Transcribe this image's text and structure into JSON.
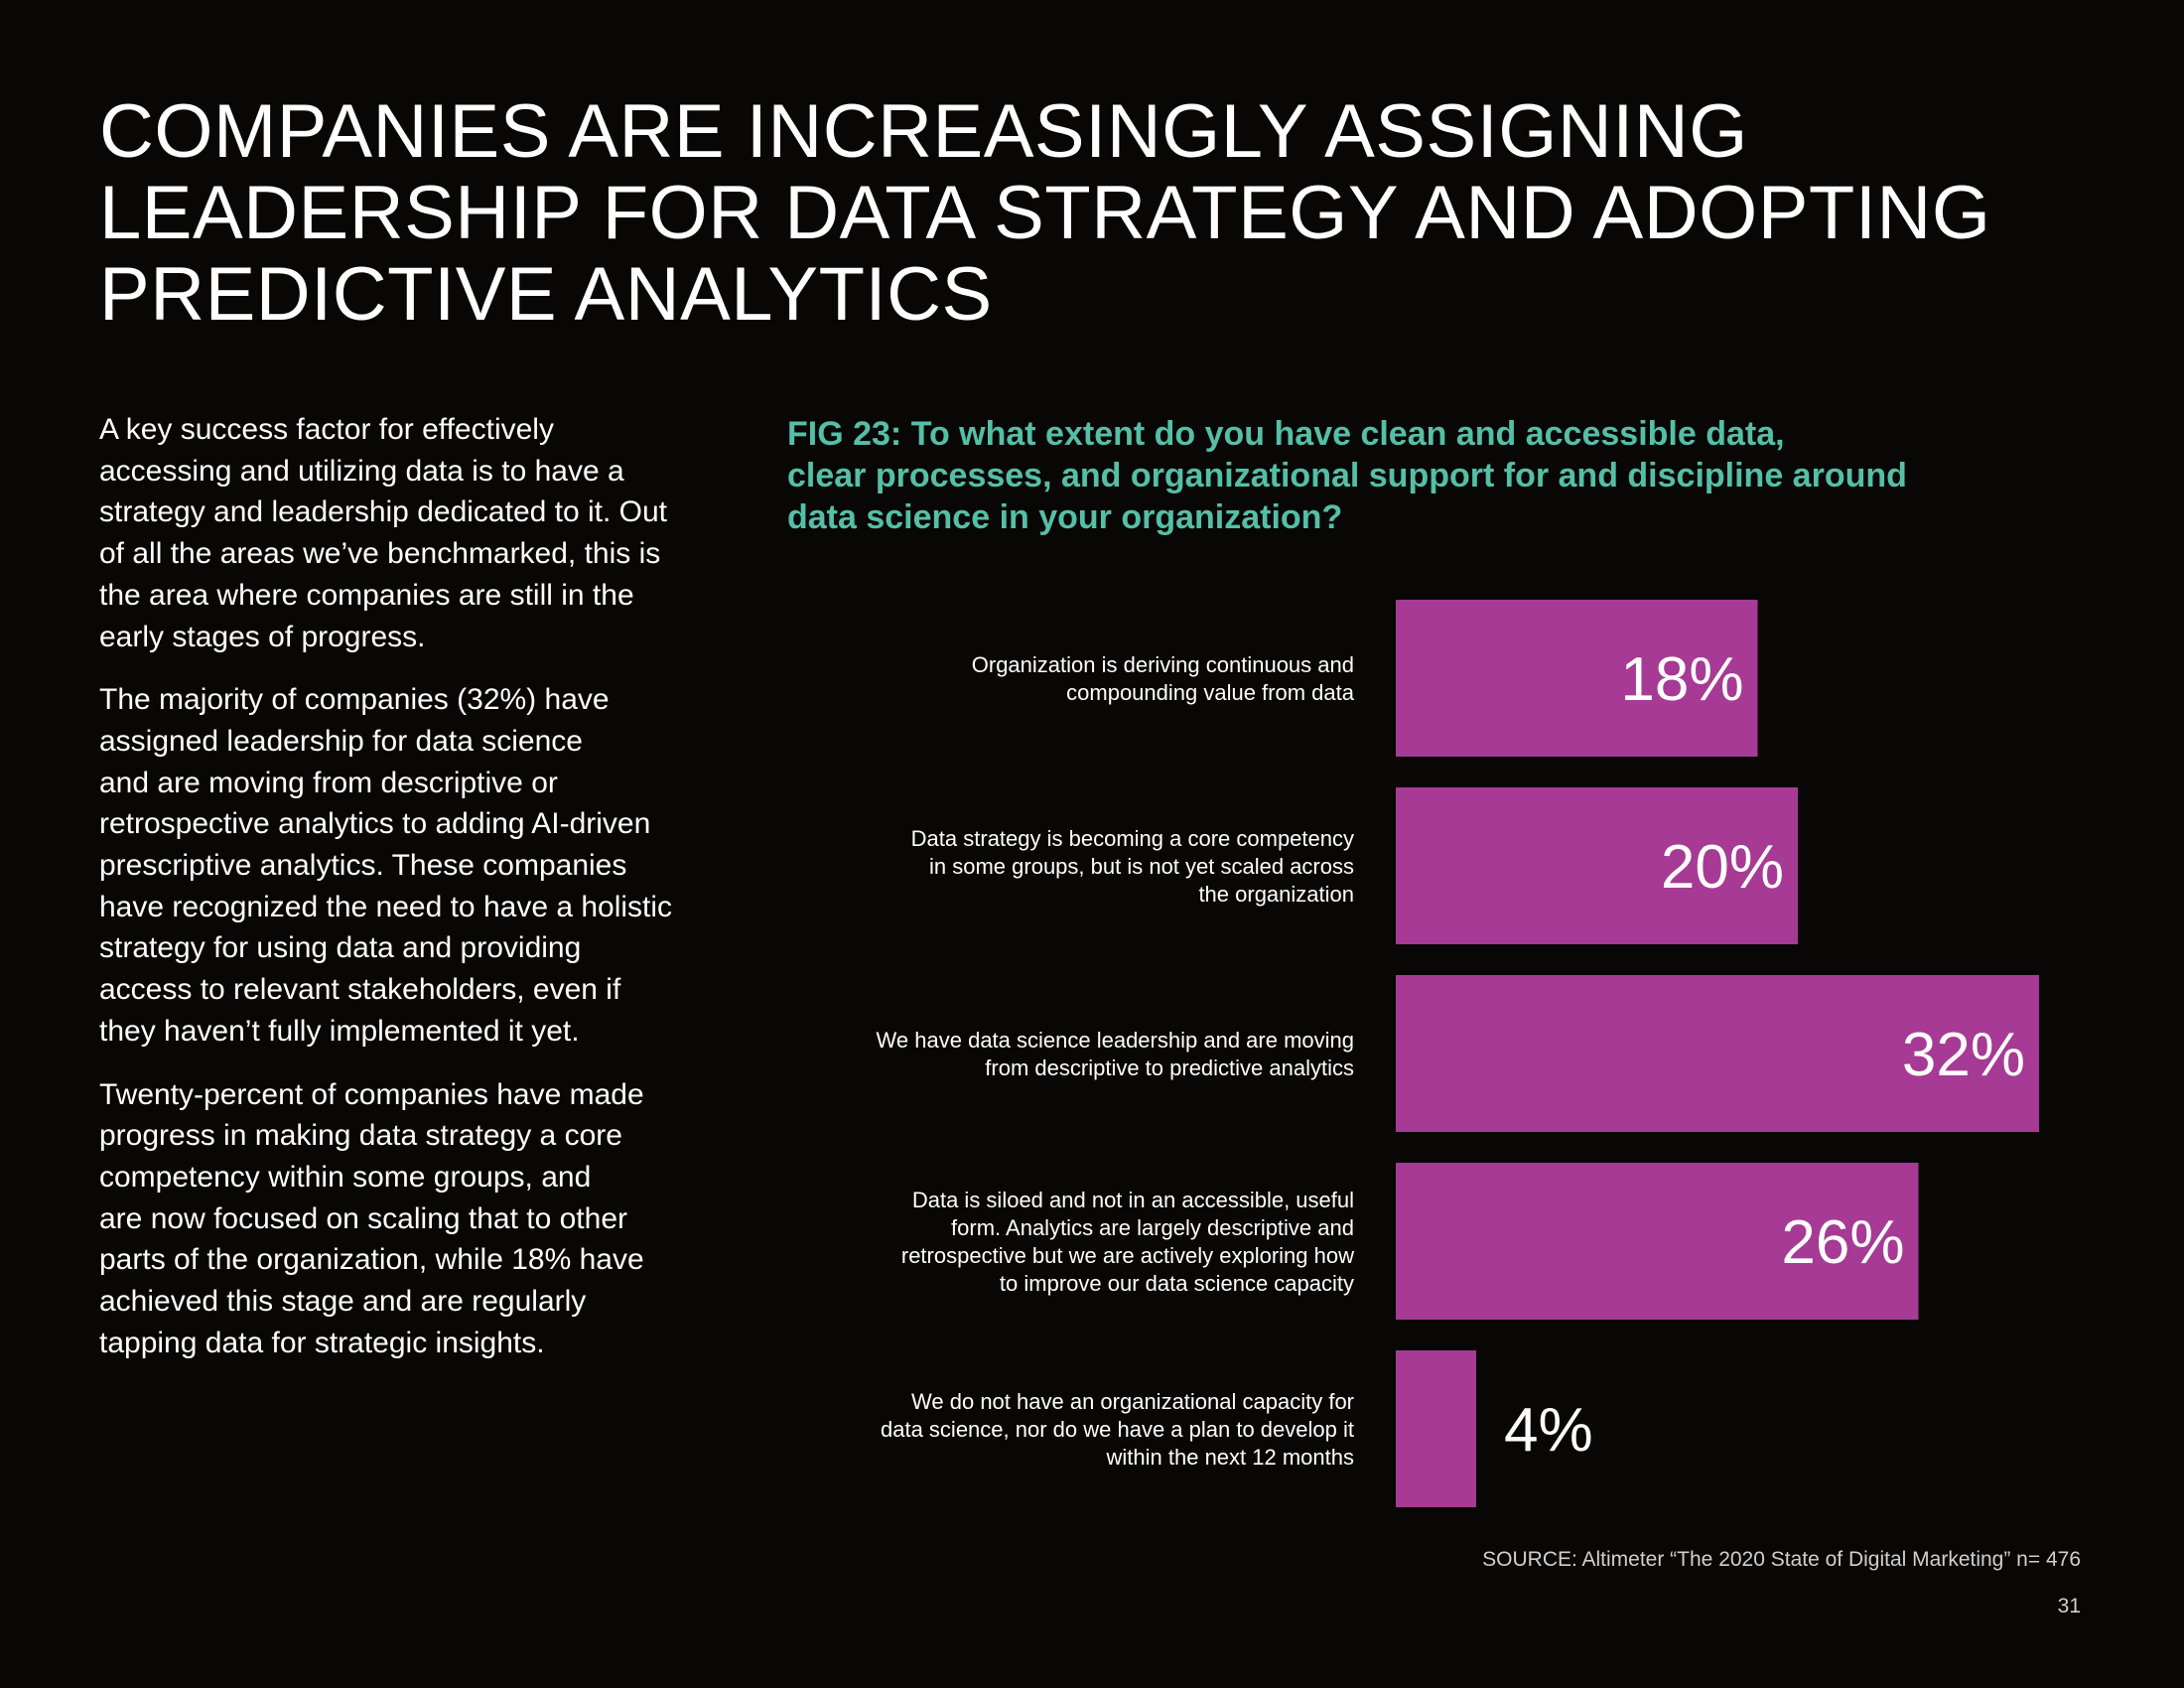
{
  "headline": {
    "lines": [
      "COMPANIES ARE INCREASINGLY ASSIGNING",
      "LEADERSHIP FOR DATA STRATEGY AND ADOPTING",
      "PREDICTIVE ANALYTICS"
    ]
  },
  "body": {
    "paragraphs": [
      [
        "A key success factor for effectively",
        "accessing and utilizing data is to have a",
        "strategy and leadership dedicated to it. Out",
        "of all the areas we’ve benchmarked, this is",
        "the area where companies are still in the",
        "early stages of progress."
      ],
      [
        "The majority of companies (32%) have",
        "assigned leadership for data science",
        "and are moving from descriptive or",
        "retrospective analytics to adding AI-driven",
        "prescriptive analytics. These companies",
        "have recognized the need to have a holistic",
        "strategy for using data and providing",
        "access to relevant stakeholders, even if",
        "they haven’t fully implemented it yet."
      ],
      [
        "Twenty-percent of companies have made",
        "progress in making data strategy a core",
        "competency within some groups, and",
        "are now focused on scaling that to other",
        "parts of the organization, while 18% have",
        "achieved this stage and are regularly",
        "tapping data for strategic insights."
      ]
    ]
  },
  "figure": {
    "title_lines": [
      "FIG 23: To what extent do you have clean and accessible data,",
      "clear processes, and organizational support for and discipline around",
      "data science in your organization?"
    ]
  },
  "chart_data": {
    "type": "bar",
    "orientation": "horizontal",
    "title": "FIG 23: To what extent do you have clean and accessible data, clear processes, and organizational support for and discipline around data science in your organization?",
    "categories": [
      [
        "Organization is deriving continuous and",
        "compounding value from data"
      ],
      [
        "Data strategy is becoming a core competency",
        "in some groups, but is not yet scaled across",
        "the organization"
      ],
      [
        "We have data science leadership and are moving",
        "from descriptive to predictive analytics"
      ],
      [
        "Data is siloed and not in an accessible, useful",
        "form. Analytics are largely descriptive and",
        "retrospective but we are actively exploring how",
        "to improve our data science capacity"
      ],
      [
        "We do not have an organizational capacity for",
        "data science, nor do we have a plan to develop it",
        "within the next 12 months"
      ]
    ],
    "values": [
      18,
      20,
      32,
      26,
      4
    ],
    "value_labels": [
      "18%",
      "20%",
      "32%",
      "26%",
      "4%"
    ],
    "unit": "%",
    "xlim": [
      0,
      32
    ],
    "bar_color": "#a63a94",
    "label_color": "#ffffff"
  },
  "footer": {
    "source": "SOURCE: Altimeter “The 2020 State of Digital Marketing” n= 476",
    "page_number": "31"
  }
}
